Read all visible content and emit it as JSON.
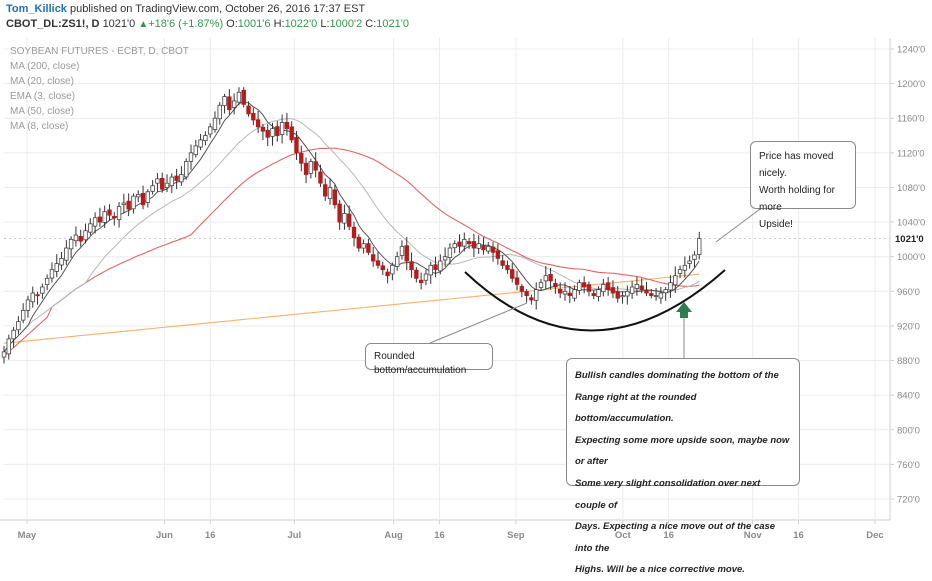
{
  "header": {
    "author": "Tom_Killick",
    "published": "published on TradingView.com, October 26, 2016 17:37 EST",
    "symbol": "CBOT_DL:ZS1!, D",
    "last": "1021'0",
    "change": "+18'6 (+1.87%)",
    "open_label": "O:",
    "open": "1001'6",
    "high_label": "H:",
    "high": "1022'0",
    "low_label": "L:",
    "low": "1000'2",
    "close_label": "C:",
    "close": "1021'0"
  },
  "legend": {
    "title": "SOYBEAN FUTURES - ECBT, D, CBOT",
    "items": [
      "MA (200, close)",
      "MA (20, close)",
      "EMA (3, close)",
      "MA (50, close)",
      "MA (8, close)"
    ]
  },
  "annotations": {
    "top_right": [
      "Price has moved nicely.",
      "Worth holding for more",
      "Upside!"
    ],
    "rounded": "Rounded bottom/accumulation",
    "bullish": [
      "Bullish candles dominating the bottom of the",
      "Range right at the rounded bottom/accumulation.",
      "Expecting some more upside soon, maybe now or after",
      "Some very slight consolidation over next couple of",
      "Days. Expecting a nice move out of the case into the",
      "Highs. Will be a nice corrective move."
    ]
  },
  "price_badge": "1021'0",
  "colors": {
    "up": "#ffffff",
    "down": "#b71c1c",
    "wick": "#333333",
    "ma200": "#f6b26b",
    "ma50": "#e06666",
    "ma20": "#b7b7b7",
    "ma8": "#555555",
    "ema3": "#c9a0dc",
    "arrow": "#2e7d4f",
    "grid": "#ececec",
    "axis_text": "#8a8a8a"
  },
  "chart_data": {
    "type": "candlestick",
    "title": "SOYBEAN FUTURES - ECBT, D, CBOT",
    "y_ticks": [
      "1240'0",
      "1200'0",
      "1160'0",
      "1120'0",
      "1080'0",
      "1040'0",
      "1000'0",
      "960'0",
      "920'0",
      "880'0",
      "840'0",
      "800'0",
      "760'0",
      "720'0"
    ],
    "y_tick_values": [
      1240,
      1200,
      1160,
      1120,
      1080,
      1040,
      1000,
      960,
      920,
      880,
      840,
      800,
      760,
      720
    ],
    "ylim": [
      700,
      1250
    ],
    "x_ticks": [
      "May",
      "Jun",
      "16",
      "Jul",
      "Aug",
      "16",
      "Sep",
      "Oct",
      "16",
      "Nov",
      "16",
      "Dec"
    ],
    "x_tick_days": [
      6,
      42,
      54,
      76,
      102,
      114,
      134,
      162,
      174,
      196,
      208,
      228
    ],
    "last_day": 182,
    "closes": [
      890,
      905,
      915,
      925,
      938,
      950,
      958,
      955,
      965,
      975,
      985,
      992,
      998,
      1010,
      1020,
      1025,
      1018,
      1030,
      1038,
      1045,
      1040,
      1052,
      1048,
      1045,
      1058,
      1062,
      1055,
      1070,
      1072,
      1060,
      1075,
      1082,
      1090,
      1078,
      1085,
      1092,
      1088,
      1095,
      1110,
      1120,
      1128,
      1135,
      1140,
      1150,
      1160,
      1175,
      1185,
      1170,
      1180,
      1190,
      1176,
      1165,
      1158,
      1150,
      1145,
      1138,
      1148,
      1140,
      1155,
      1148,
      1135,
      1120,
      1108,
      1095,
      1110,
      1100,
      1085,
      1070,
      1080,
      1060,
      1040,
      1050,
      1035,
      1022,
      1010,
      1015,
      1005,
      995,
      990,
      985,
      978,
      990,
      1000,
      1012,
      995,
      985,
      975,
      970,
      980,
      990,
      985,
      995,
      1000,
      1010,
      1015,
      1012,
      1020,
      1015,
      1010,
      1015,
      1008,
      1012,
      1005,
      998,
      990,
      985,
      975,
      968,
      960,
      955,
      950,
      962,
      970,
      978,
      972,
      965,
      958,
      960,
      955,
      962,
      970,
      965,
      960,
      955,
      962,
      968,
      962,
      958,
      952,
      955,
      960,
      965,
      968,
      962,
      958,
      955,
      955,
      958,
      962,
      970,
      978,
      985,
      990,
      995,
      1002,
      1021
    ]
  }
}
